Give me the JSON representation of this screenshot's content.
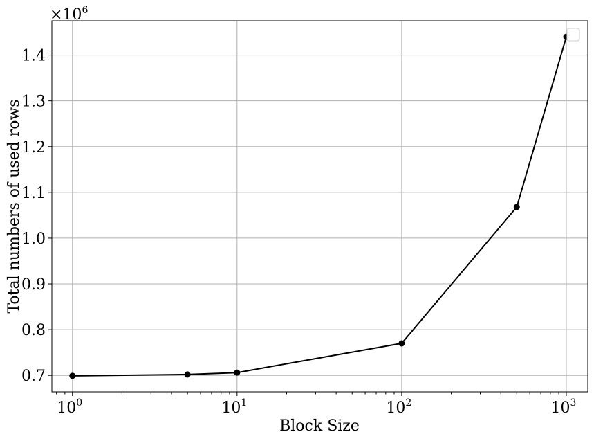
{
  "chart_data": {
    "type": "line",
    "xscale": "log",
    "xlabel": "Block Size",
    "ylabel": "Total numbers of used rows",
    "y_multiplier_base": "×10",
    "y_multiplier_exp": "6",
    "xlim": [
      0.75,
      1350
    ],
    "ylim": [
      0.664,
      1.475
    ],
    "x_ticks": [
      {
        "value": 1,
        "base": "10",
        "exp": "0"
      },
      {
        "value": 10,
        "base": "10",
        "exp": "1"
      },
      {
        "value": 100,
        "base": "10",
        "exp": "2"
      },
      {
        "value": 1000,
        "base": "10",
        "exp": "3"
      }
    ],
    "y_ticks": [
      {
        "value": 0.7,
        "label": "0.7"
      },
      {
        "value": 0.8,
        "label": "0.8"
      },
      {
        "value": 0.9,
        "label": "0.9"
      },
      {
        "value": 1.0,
        "label": "1.0"
      },
      {
        "value": 1.1,
        "label": "1.1"
      },
      {
        "value": 1.2,
        "label": "1.2"
      },
      {
        "value": 1.3,
        "label": "1.3"
      },
      {
        "value": 1.4,
        "label": "1.4"
      }
    ],
    "grid": true,
    "legend": "top-right (empty)",
    "series": [
      {
        "color": "#000000",
        "marker": "circle",
        "x": [
          1,
          5,
          10,
          100,
          500,
          1000
        ],
        "y": [
          0.699,
          0.702,
          0.706,
          0.77,
          1.068,
          1.44
        ]
      }
    ]
  }
}
